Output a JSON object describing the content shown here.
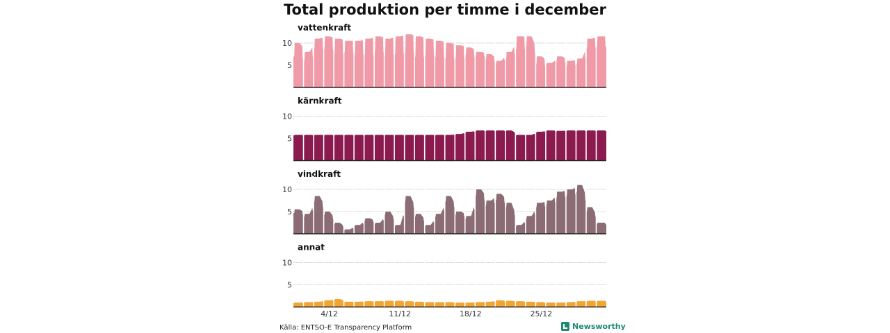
{
  "title": "Total produktion per timme i december",
  "source": "Källa: ENTSO-E Transparency Platform",
  "brand": "Newsworthy",
  "colors": {
    "accent": "#1e8a6f"
  },
  "chart_data": {
    "type": "area",
    "title": "Total produktion per timme i december",
    "x_unit": "day of December (1–31, hourly resolution)",
    "x_ticks": [
      {
        "day": 4,
        "label": "4/12"
      },
      {
        "day": 11,
        "label": "11/12"
      },
      {
        "day": 18,
        "label": "18/12"
      },
      {
        "day": 25,
        "label": "25/12"
      }
    ],
    "ylim": [
      0,
      13
    ],
    "y_ticks": [
      5,
      10
    ],
    "panels": [
      {
        "name": "vattenkraft",
        "color": "#f09aa8",
        "day_means": [
          10,
          8,
          11,
          11.5,
          11,
          10.5,
          10.5,
          11,
          11.5,
          11,
          11.5,
          12,
          11.5,
          11,
          10.5,
          10,
          9.5,
          9,
          8,
          7.5,
          6,
          8,
          11.5,
          11.5,
          7,
          5.5,
          7,
          6,
          6.5,
          11,
          11.5
        ],
        "night_dip": [
          0.3,
          0.25,
          0.2,
          0.25,
          0.3,
          0.25,
          0.3,
          0.35,
          0.3,
          0.35,
          0.35,
          0.35,
          0.4,
          0.35,
          0.35,
          0.35,
          0.3,
          0.2,
          0.1,
          0.15,
          0.1,
          0.2,
          0.25,
          0.2,
          0.25,
          0.05,
          0.15,
          0.2,
          0.2,
          0.2,
          0.2
        ]
      },
      {
        "name": "kärnkraft",
        "color": "#8b1a4f",
        "day_means": [
          5.8,
          5.8,
          5.8,
          5.8,
          5.8,
          5.8,
          5.8,
          5.8,
          5.8,
          5.8,
          5.8,
          5.8,
          5.8,
          5.8,
          5.8,
          5.8,
          6.0,
          6.5,
          6.8,
          6.8,
          6.8,
          6.8,
          5.8,
          5.8,
          6.5,
          6.8,
          6.7,
          6.8,
          6.8,
          6.8,
          6.8
        ],
        "night_dip": [
          0.02,
          0.02,
          0.02,
          0.02,
          0.02,
          0.02,
          0.02,
          0.02,
          0.02,
          0.02,
          0.02,
          0.02,
          0.02,
          0.02,
          0.02,
          0.02,
          0.02,
          0.02,
          0.02,
          0.02,
          0.02,
          0.02,
          0.02,
          0.02,
          0.02,
          0.02,
          0.02,
          0.02,
          0.02,
          0.02,
          0.02
        ]
      },
      {
        "name": "vindkraft",
        "color": "#8b6b74",
        "day_means": [
          5.5,
          4.5,
          8.5,
          5.0,
          2.5,
          1.0,
          2.0,
          3.5,
          2.5,
          5.0,
          2.0,
          8.5,
          4.5,
          2.0,
          4.5,
          8.5,
          5.0,
          4.0,
          10.0,
          7.5,
          9.0,
          7.0,
          2.0,
          4.0,
          7.0,
          7.5,
          9.5,
          10.0,
          11.0,
          6.0,
          2.5
        ],
        "night_dip": [
          0.15,
          0.15,
          0.15,
          0.15,
          0.15,
          0.15,
          0.15,
          0.15,
          0.15,
          0.15,
          0.15,
          0.15,
          0.15,
          0.15,
          0.15,
          0.15,
          0.15,
          0.15,
          0.15,
          0.15,
          0.15,
          0.15,
          0.15,
          0.15,
          0.15,
          0.15,
          0.15,
          0.15,
          0.15,
          0.15,
          0.15
        ]
      },
      {
        "name": "annat",
        "color": "#f2a531",
        "day_means": [
          1.0,
          1.1,
          1.2,
          1.5,
          1.8,
          1.2,
          1.2,
          1.3,
          1.3,
          1.4,
          1.4,
          1.3,
          1.2,
          1.1,
          1.1,
          1.1,
          1.0,
          1.0,
          1.1,
          1.2,
          1.5,
          1.4,
          1.3,
          1.2,
          1.1,
          1.0,
          1.0,
          1.1,
          1.3,
          1.4,
          1.4
        ],
        "night_dip": [
          0.1,
          0.1,
          0.1,
          0.1,
          0.1,
          0.1,
          0.1,
          0.1,
          0.1,
          0.1,
          0.1,
          0.1,
          0.1,
          0.1,
          0.1,
          0.1,
          0.1,
          0.1,
          0.1,
          0.1,
          0.1,
          0.1,
          0.1,
          0.1,
          0.1,
          0.1,
          0.1,
          0.1,
          0.1,
          0.1,
          0.1
        ]
      }
    ]
  }
}
